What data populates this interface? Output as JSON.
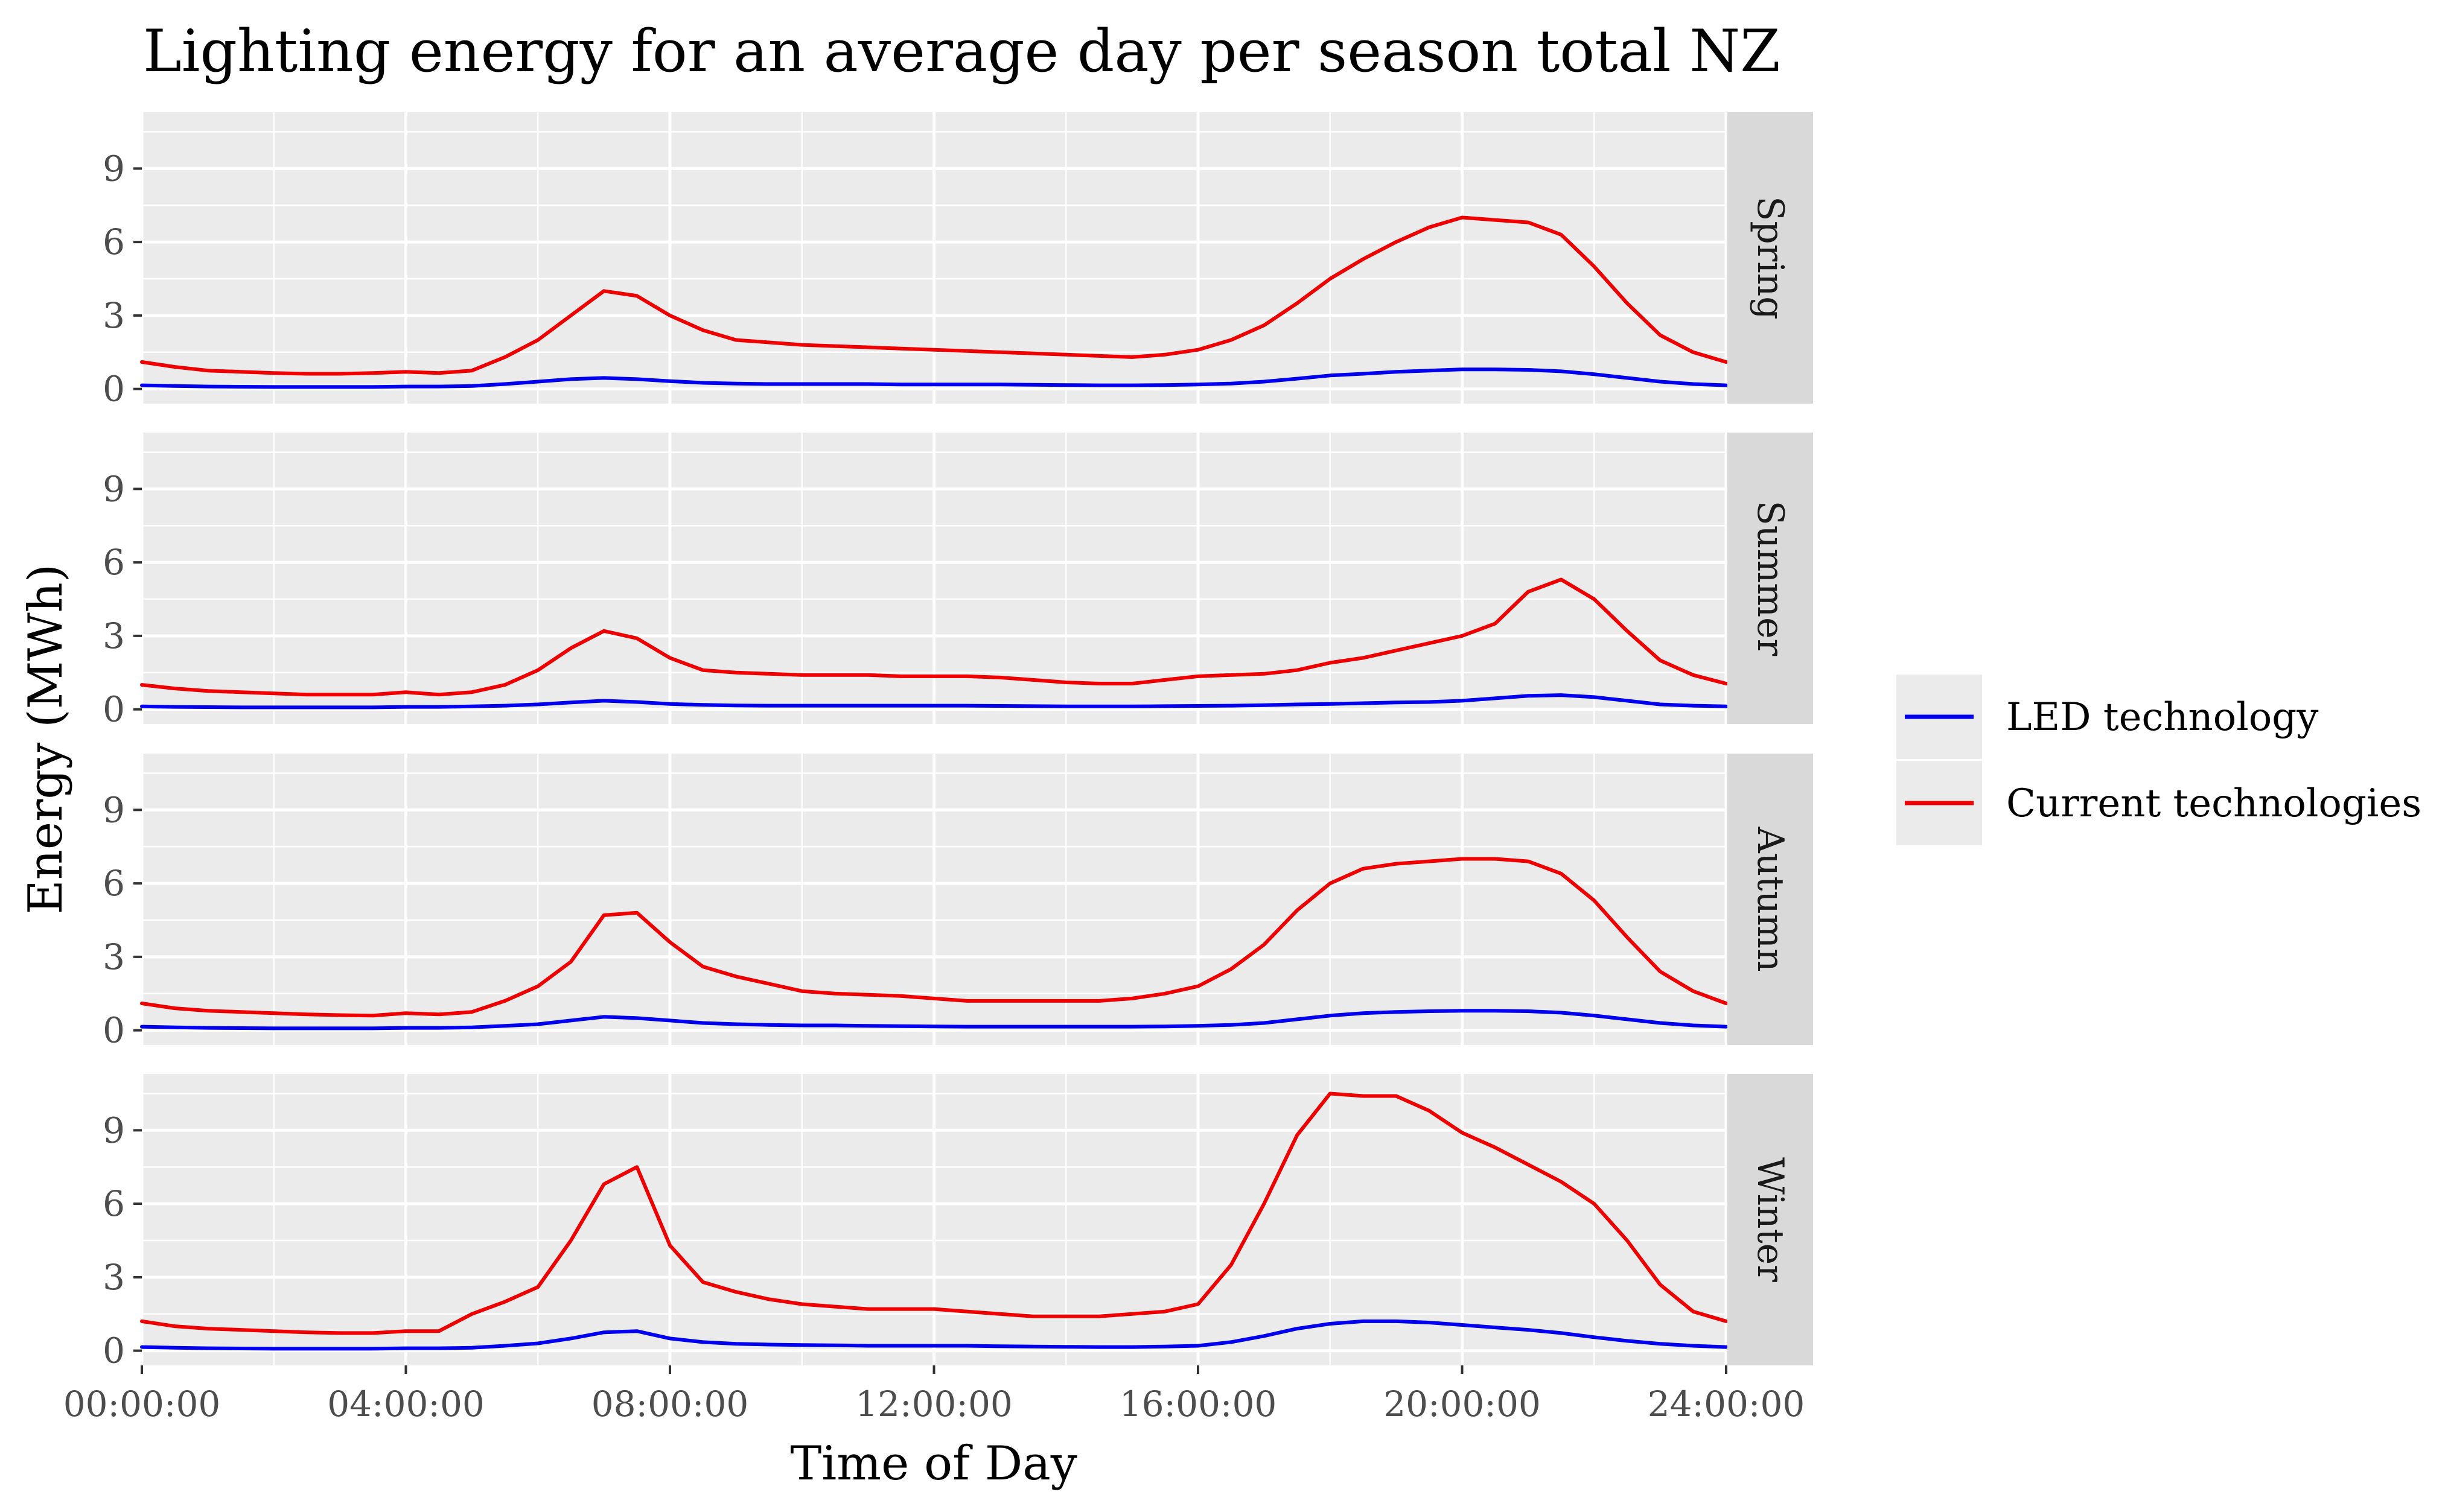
{
  "chart_data": {
    "type": "line",
    "title": "Lighting energy for an average day per season total NZ",
    "xlabel": "Time of Day",
    "ylabel": "Energy (MWh)",
    "x_ticks": [
      "00:00:00",
      "04:00:00",
      "08:00:00",
      "12:00:00",
      "16:00:00",
      "20:00:00",
      "24:00:00"
    ],
    "x_unit": "hours",
    "xlim": [
      0,
      24
    ],
    "y_ticks": [
      0,
      3,
      6,
      9
    ],
    "ylim": [
      -0.6,
      11.3
    ],
    "grid": true,
    "legend_position": "right",
    "legend": [
      {
        "label": "LED technology",
        "color": "#0000ee"
      },
      {
        "label": "Current technologies",
        "color": "#ee0000"
      }
    ],
    "x": [
      0,
      0.5,
      1,
      1.5,
      2,
      2.5,
      3,
      3.5,
      4,
      4.5,
      5,
      5.5,
      6,
      6.5,
      7,
      7.5,
      8,
      8.5,
      9,
      9.5,
      10,
      10.5,
      11,
      11.5,
      12,
      12.5,
      13,
      13.5,
      14,
      14.5,
      15,
      15.5,
      16,
      16.5,
      17,
      17.5,
      18,
      18.5,
      19,
      19.5,
      20,
      20.5,
      21,
      21.5,
      22,
      22.5,
      23,
      23.5,
      24
    ],
    "panels": [
      {
        "season": "Spring",
        "series": [
          {
            "name": "LED technology",
            "values": [
              0.15,
              0.12,
              0.1,
              0.09,
              0.08,
              0.08,
              0.08,
              0.08,
              0.1,
              0.1,
              0.12,
              0.2,
              0.3,
              0.4,
              0.45,
              0.4,
              0.32,
              0.25,
              0.22,
              0.2,
              0.2,
              0.2,
              0.2,
              0.18,
              0.18,
              0.18,
              0.18,
              0.17,
              0.16,
              0.15,
              0.15,
              0.16,
              0.18,
              0.22,
              0.3,
              0.42,
              0.55,
              0.62,
              0.7,
              0.75,
              0.8,
              0.8,
              0.78,
              0.72,
              0.6,
              0.45,
              0.3,
              0.2,
              0.15
            ]
          },
          {
            "name": "Current technologies",
            "values": [
              1.1,
              0.9,
              0.75,
              0.7,
              0.65,
              0.62,
              0.62,
              0.65,
              0.7,
              0.65,
              0.75,
              1.3,
              2.0,
              3.0,
              4.0,
              3.8,
              3.0,
              2.4,
              2.0,
              1.9,
              1.8,
              1.75,
              1.7,
              1.65,
              1.6,
              1.55,
              1.5,
              1.45,
              1.4,
              1.35,
              1.3,
              1.4,
              1.6,
              2.0,
              2.6,
              3.5,
              4.5,
              5.3,
              6.0,
              6.6,
              7.0,
              6.9,
              6.8,
              6.3,
              5.0,
              3.5,
              2.2,
              1.5,
              1.1
            ]
          }
        ]
      },
      {
        "season": "Summer",
        "series": [
          {
            "name": "LED technology",
            "values": [
              0.12,
              0.1,
              0.09,
              0.08,
              0.08,
              0.08,
              0.08,
              0.08,
              0.1,
              0.1,
              0.12,
              0.15,
              0.2,
              0.28,
              0.35,
              0.3,
              0.22,
              0.18,
              0.16,
              0.15,
              0.15,
              0.15,
              0.15,
              0.15,
              0.15,
              0.15,
              0.14,
              0.13,
              0.12,
              0.12,
              0.12,
              0.13,
              0.14,
              0.15,
              0.17,
              0.2,
              0.22,
              0.25,
              0.28,
              0.3,
              0.35,
              0.45,
              0.55,
              0.58,
              0.5,
              0.35,
              0.2,
              0.15,
              0.12
            ]
          },
          {
            "name": "Current technologies",
            "values": [
              1.0,
              0.85,
              0.75,
              0.7,
              0.65,
              0.6,
              0.6,
              0.6,
              0.7,
              0.6,
              0.7,
              1.0,
              1.6,
              2.5,
              3.2,
              2.9,
              2.1,
              1.6,
              1.5,
              1.45,
              1.4,
              1.4,
              1.4,
              1.35,
              1.35,
              1.35,
              1.3,
              1.2,
              1.1,
              1.05,
              1.05,
              1.2,
              1.35,
              1.4,
              1.45,
              1.6,
              1.9,
              2.1,
              2.4,
              2.7,
              3.0,
              3.5,
              4.8,
              5.3,
              4.5,
              3.2,
              2.0,
              1.4,
              1.05
            ]
          }
        ]
      },
      {
        "season": "Autumn",
        "series": [
          {
            "name": "LED technology",
            "values": [
              0.15,
              0.12,
              0.1,
              0.09,
              0.08,
              0.08,
              0.08,
              0.08,
              0.1,
              0.1,
              0.12,
              0.18,
              0.25,
              0.4,
              0.55,
              0.5,
              0.4,
              0.3,
              0.25,
              0.22,
              0.2,
              0.2,
              0.18,
              0.17,
              0.16,
              0.15,
              0.15,
              0.15,
              0.15,
              0.15,
              0.15,
              0.16,
              0.18,
              0.22,
              0.3,
              0.45,
              0.6,
              0.7,
              0.75,
              0.78,
              0.8,
              0.8,
              0.78,
              0.72,
              0.6,
              0.45,
              0.3,
              0.2,
              0.15
            ]
          },
          {
            "name": "Current technologies",
            "values": [
              1.1,
              0.9,
              0.8,
              0.75,
              0.7,
              0.65,
              0.62,
              0.6,
              0.7,
              0.65,
              0.75,
              1.2,
              1.8,
              2.8,
              4.7,
              4.8,
              3.6,
              2.6,
              2.2,
              1.9,
              1.6,
              1.5,
              1.45,
              1.4,
              1.3,
              1.2,
              1.2,
              1.2,
              1.2,
              1.2,
              1.3,
              1.5,
              1.8,
              2.5,
              3.5,
              4.9,
              6.0,
              6.6,
              6.8,
              6.9,
              7.0,
              7.0,
              6.9,
              6.4,
              5.3,
              3.8,
              2.4,
              1.6,
              1.1
            ]
          }
        ]
      },
      {
        "season": "Winter",
        "series": [
          {
            "name": "LED technology",
            "values": [
              0.15,
              0.12,
              0.1,
              0.09,
              0.08,
              0.08,
              0.08,
              0.08,
              0.1,
              0.1,
              0.12,
              0.2,
              0.3,
              0.5,
              0.75,
              0.8,
              0.5,
              0.35,
              0.28,
              0.25,
              0.23,
              0.22,
              0.2,
              0.2,
              0.2,
              0.2,
              0.18,
              0.17,
              0.16,
              0.15,
              0.15,
              0.17,
              0.2,
              0.35,
              0.6,
              0.9,
              1.1,
              1.2,
              1.2,
              1.15,
              1.05,
              0.95,
              0.85,
              0.72,
              0.55,
              0.4,
              0.28,
              0.2,
              0.15
            ]
          },
          {
            "name": "Current technologies",
            "values": [
              1.2,
              1.0,
              0.9,
              0.85,
              0.8,
              0.75,
              0.72,
              0.72,
              0.8,
              0.8,
              1.5,
              2.0,
              2.6,
              4.5,
              6.8,
              7.5,
              4.3,
              2.8,
              2.4,
              2.1,
              1.9,
              1.8,
              1.7,
              1.7,
              1.7,
              1.6,
              1.5,
              1.4,
              1.4,
              1.4,
              1.5,
              1.6,
              1.9,
              3.5,
              6.0,
              8.8,
              10.5,
              10.4,
              10.4,
              9.8,
              8.9,
              8.3,
              7.6,
              6.9,
              6.0,
              4.5,
              2.7,
              1.6,
              1.2
            ]
          }
        ]
      }
    ]
  }
}
